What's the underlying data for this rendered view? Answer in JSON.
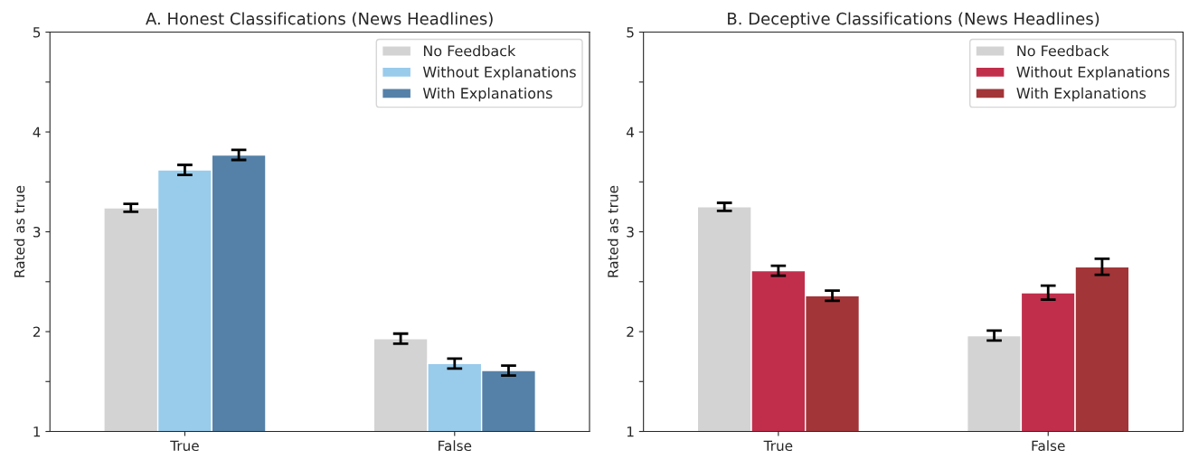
{
  "chart_data": [
    {
      "type": "bar",
      "title": "A. Honest Classifications (News Headlines)",
      "ylabel": "Rated as true",
      "categories": [
        "True",
        "False"
      ],
      "ylim": [
        1,
        5
      ],
      "yticks": [
        1,
        {
          "value": 1.5,
          "label": null
        },
        2,
        {
          "value": 2.5,
          "label": null
        },
        3,
        {
          "value": 3.5,
          "label": null
        },
        4,
        {
          "value": 4.5,
          "label": null
        },
        5
      ],
      "legend": "top right",
      "grid": false,
      "series": [
        {
          "name": "No Feedback",
          "color": "#d3d3d3",
          "values": [
            3.24,
            1.93
          ],
          "errors": [
            0.04,
            0.05
          ]
        },
        {
          "name": "Without Explanations",
          "color": "#99cbeb",
          "values": [
            3.62,
            1.68
          ],
          "errors": [
            0.05,
            0.05
          ]
        },
        {
          "name": "With Explanations",
          "color": "#5581a8",
          "values": [
            3.77,
            1.61
          ],
          "errors": [
            0.05,
            0.05
          ]
        }
      ]
    },
    {
      "type": "bar",
      "title": "B. Deceptive Classifications (News Headlines)",
      "ylabel": "Rated as true",
      "categories": [
        "True",
        "False"
      ],
      "ylim": [
        1,
        5
      ],
      "yticks": [
        1,
        {
          "value": 1.5,
          "label": null
        },
        2,
        {
          "value": 2.5,
          "label": null
        },
        3,
        {
          "value": 3.5,
          "label": null
        },
        4,
        {
          "value": 4.5,
          "label": null
        },
        5
      ],
      "legend": "top right",
      "grid": false,
      "series": [
        {
          "name": "No Feedback",
          "color": "#d3d3d3",
          "values": [
            3.25,
            1.96
          ],
          "errors": [
            0.04,
            0.05
          ]
        },
        {
          "name": "Without Explanations",
          "color": "#c12e4b",
          "values": [
            2.61,
            2.39
          ],
          "errors": [
            0.05,
            0.07
          ]
        },
        {
          "name": "With Explanations",
          "color": "#a23538",
          "values": [
            2.36,
            2.65
          ],
          "errors": [
            0.05,
            0.08
          ]
        }
      ]
    }
  ]
}
